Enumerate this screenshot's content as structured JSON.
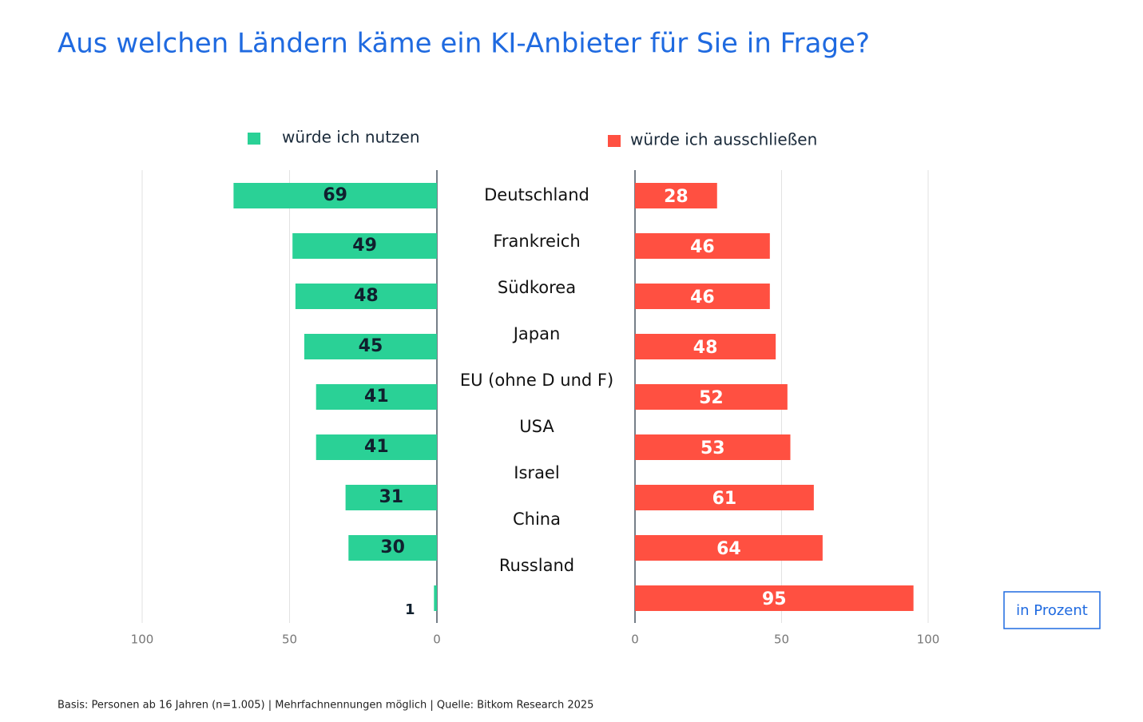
{
  "chart_data": {
    "type": "butterfly",
    "title": "Aus welchen Ländern käme ein KI-Anbieter für Sie in Frage?",
    "categories": [
      "Deutschland",
      "Frankreich",
      "Südkorea",
      "Japan",
      "EU (ohne D und F)",
      "USA",
      "Israel",
      "China",
      "Russland"
    ],
    "series": [
      {
        "name": "würde ich nutzen",
        "color": "#2ad196",
        "values": [
          69,
          49,
          48,
          45,
          41,
          41,
          31,
          30,
          1
        ]
      },
      {
        "name": "würde ich ausschließen",
        "color": "#ff5041",
        "values": [
          28,
          46,
          46,
          48,
          52,
          53,
          61,
          64,
          95
        ]
      }
    ],
    "xlim": [
      0,
      100
    ],
    "xticks": [
      0,
      50,
      100
    ],
    "grid": true,
    "annotation": "in Prozent",
    "note": "Basis: Personen ab 16 Jahren (n=1.005) | Mehrfachnennungen möglich | Quelle: Bitkom Research 2025"
  }
}
